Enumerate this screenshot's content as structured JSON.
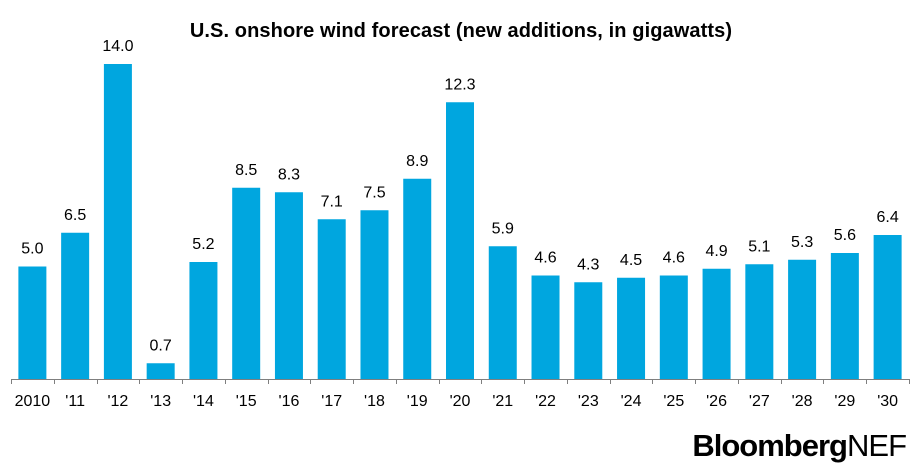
{
  "chart_data": {
    "type": "bar",
    "title": "U.S. onshore wind forecast (new additions, in gigawatts)",
    "xlabel": "",
    "ylabel": "",
    "categories": [
      "2010",
      "'11",
      "'12",
      "'13",
      "'14",
      "'15",
      "'16",
      "'17",
      "'18",
      "'19",
      "'20",
      "'21",
      "'22",
      "'23",
      "'24",
      "'25",
      "'26",
      "'27",
      "'28",
      "'29",
      "'30"
    ],
    "values": [
      5.0,
      6.5,
      14.0,
      0.7,
      5.2,
      8.5,
      8.3,
      7.1,
      7.5,
      8.9,
      12.3,
      5.9,
      4.6,
      4.3,
      4.5,
      4.6,
      4.9,
      5.1,
      5.3,
      5.6,
      6.4
    ],
    "value_labels": [
      "5.0",
      "6.5",
      "14.0",
      "0.7",
      "5.2",
      "8.5",
      "8.3",
      "7.1",
      "7.5",
      "8.9",
      "12.3",
      "5.9",
      "4.6",
      "4.3",
      "4.5",
      "4.6",
      "4.9",
      "5.1",
      "5.3",
      "5.6",
      "6.4"
    ],
    "ylim": [
      0,
      14
    ],
    "grid": false,
    "legend": "none",
    "bar_color": "#00A6DF"
  },
  "brand": {
    "name": "Bloomberg",
    "suffix": "NEF"
  }
}
